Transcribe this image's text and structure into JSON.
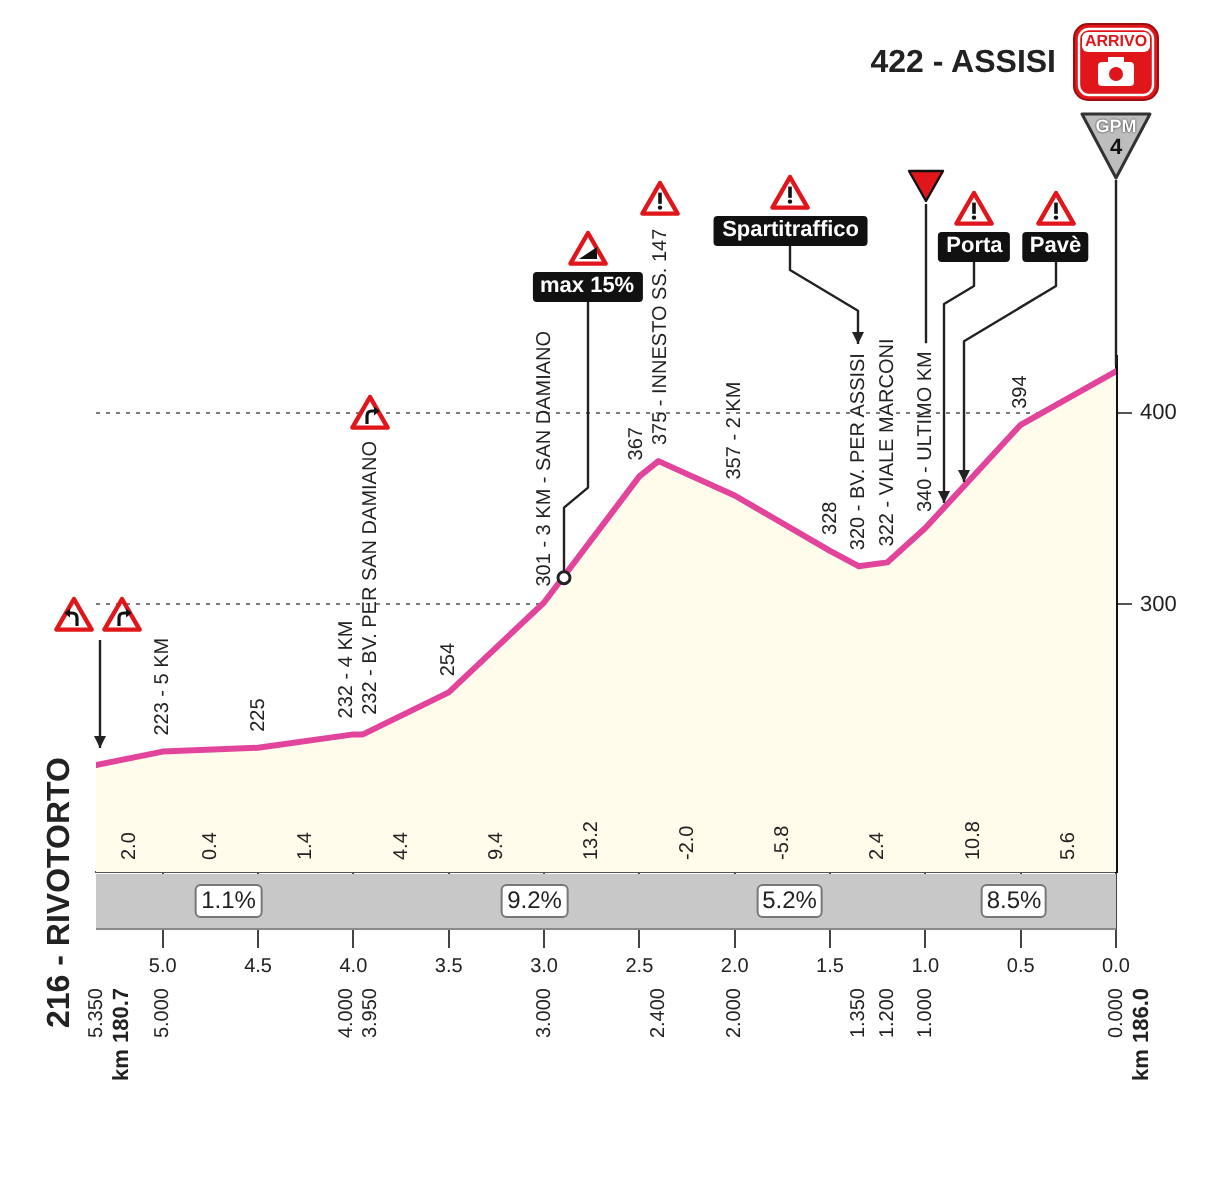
{
  "chart_data": {
    "type": "area",
    "title": "422 - ASSISI",
    "x": [
      5.35,
      5.0,
      4.5,
      4.0,
      3.95,
      3.5,
      3.0,
      2.5,
      2.4,
      2.0,
      1.5,
      1.35,
      1.2,
      1.0,
      0.5,
      0.0
    ],
    "values": [
      216,
      223,
      225,
      232,
      232,
      254,
      301,
      367,
      375,
      357,
      328,
      320,
      322,
      340,
      394,
      422
    ],
    "value_labels": [
      "216 - RIVOTORTO",
      "223 - 5 KM",
      "225",
      "232 - 4 KM",
      "232 - BV. PER SAN DAMIANO",
      "254",
      "301 - 3 KM - SAN DAMIANO",
      "367",
      "375 - INNESTO SS. 147",
      "357 - 2 KM",
      "328",
      "320 - BV. PER ASSISI",
      "322 - VIALE MARCONI",
      "340 - ULTIMO KM",
      "394",
      null
    ],
    "color": "#e2449c",
    "xlim": [
      5.35,
      0
    ],
    "xticks": [
      {
        "value": 5,
        "label": "5.0"
      },
      4.5,
      {
        "value": 4,
        "label": "4.0"
      },
      3.5,
      {
        "value": 3,
        "label": "3.0"
      },
      2.5,
      {
        "value": 2,
        "label": "2.0"
      },
      1.5,
      {
        "value": 1,
        "label": "1.0"
      },
      0.5,
      {
        "value": 0,
        "label": "0.0"
      }
    ],
    "x2lim": [
      5.35,
      0
    ],
    "x2ticks": [
      {
        "value": 5.35,
        "label": "5.350"
      },
      {
        "value": 5,
        "label": "5.000"
      },
      {
        "value": 4,
        "label": "4.000"
      },
      {
        "value": 3.95,
        "label": "3.950"
      },
      {
        "value": 3,
        "label": "3.000"
      },
      {
        "value": 2.4,
        "label": "2.400"
      },
      {
        "value": 2,
        "label": "2.000"
      },
      {
        "value": 1.35,
        "label": "1.350"
      },
      {
        "value": 1.2,
        "label": "1.200"
      },
      {
        "value": 1,
        "label": "1.000"
      },
      {
        "value": 0,
        "label": "0.000"
      }
    ],
    "ylim": [
      160,
      430
    ],
    "yticks": [
      300,
      400
    ],
    "grid": "y",
    "marker": "none",
    "annotations": [
      "2.0",
      "0.4",
      "1.4",
      "4.4",
      "9.4",
      "13.2",
      "-2.0",
      "-5.8",
      "2.4",
      "10.8",
      "5.6",
      "1.1%",
      "9.2%",
      "5.2%",
      "8.5%",
      "km 180.7",
      "km 186.0",
      "Spartitraffico",
      "GPM",
      "4",
      "ARRIVO",
      {
        "text": "max 15%",
        "x": 2.9,
        "y": 314
      },
      {
        "text": "Porta",
        "x": 0.9,
        "y": 351
      },
      {
        "text": "Pavè",
        "x": 0.8,
        "y": 362
      }
    ]
  }
}
